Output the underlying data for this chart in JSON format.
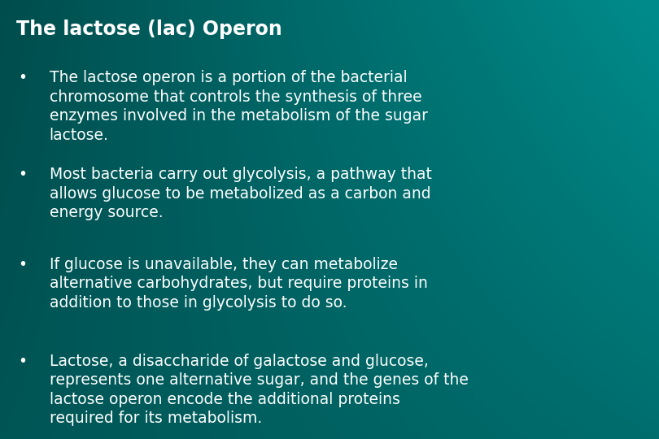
{
  "title": "The lactose (lac) Operon",
  "bullet_points": [
    "The lactose operon is a portion of the bacterial\nchromosome that controls the synthesis of three\nenzymes involved in the metabolism of the sugar\nlactose.",
    "Most bacteria carry out glycolysis, a pathway that\nallows glucose to be metabolized as a carbon and\nenergy source.",
    "If glucose is unavailable, they can metabolize\nalternative carbohydrates, but require proteins in\naddition to those in glycolysis to do so.",
    "Lactose, a disaccharide of galactose and glucose,\nrepresents one alternative sugar, and the genes of the\nlactose operon encode the additional proteins\nrequired for its metabolism."
  ],
  "bg_tl": [
    0,
    77,
    77
  ],
  "bg_tr": [
    0,
    140,
    140
  ],
  "bg_bl": [
    0,
    85,
    85
  ],
  "bg_br": [
    0,
    110,
    110
  ],
  "text_color": "#ffffff",
  "title_fontsize": 17,
  "body_fontsize": 13.5,
  "bullet_char": "•"
}
